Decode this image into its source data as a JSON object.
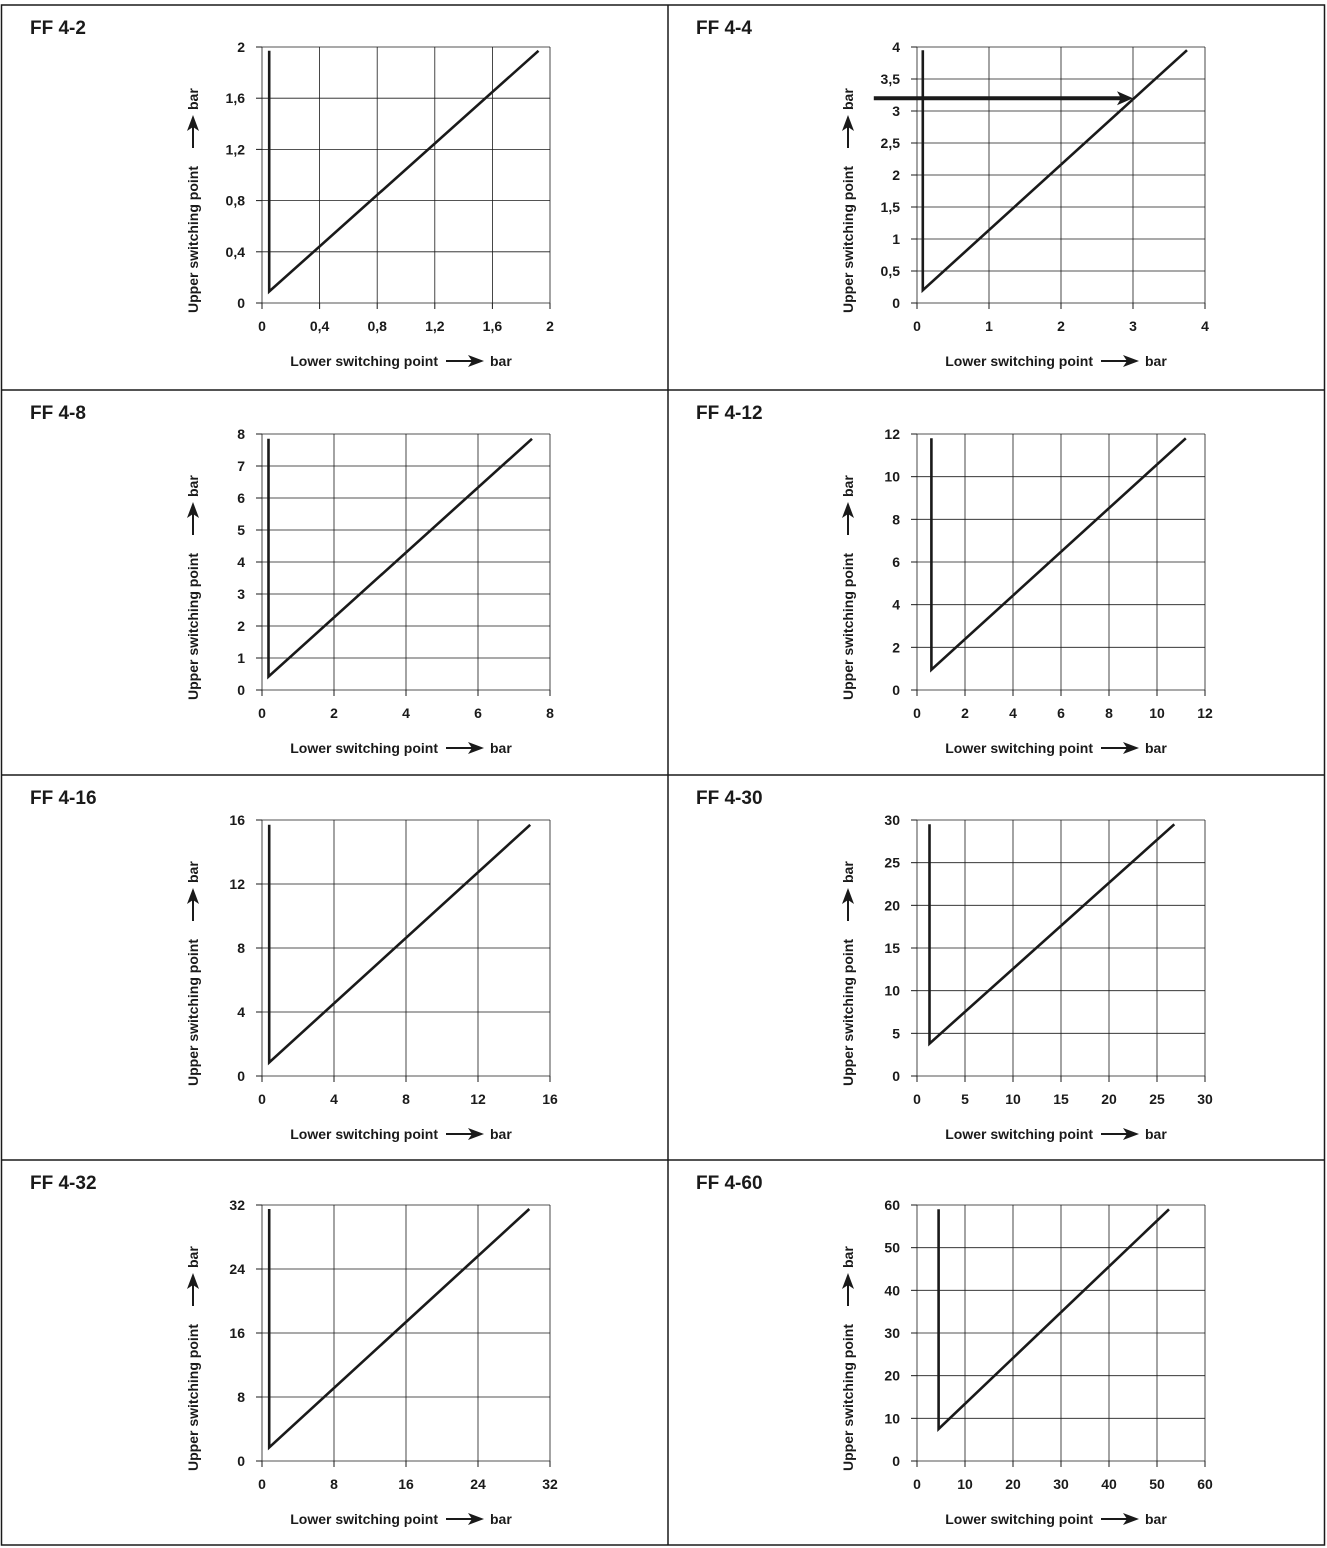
{
  "chart_data": [
    {
      "type": "line",
      "title": "FF 4-2",
      "xlabel": "Lower switching point",
      "xunit": "bar",
      "ylabel": "Upper switching point",
      "yunit": "bar",
      "xlim": [
        0,
        2
      ],
      "ylim": [
        0,
        2
      ],
      "xticks": [
        0,
        0.4,
        0.8,
        1.2,
        1.6,
        2
      ],
      "xtick_labels": [
        "0",
        "0,4",
        "0,8",
        "1,2",
        "1,6",
        "2"
      ],
      "yticks": [
        0,
        0.4,
        0.8,
        1.2,
        1.6,
        2
      ],
      "ytick_labels": [
        "0",
        "0,4",
        "0,8",
        "1,2",
        "1,6",
        "2"
      ],
      "grid": true,
      "series": [
        {
          "x": [
            0.05,
            0.05,
            1.92
          ],
          "y": [
            1.97,
            0.09,
            1.97
          ]
        }
      ]
    },
    {
      "type": "line",
      "title": "FF 4-4",
      "xlabel": "Lower switching point",
      "xunit": "bar",
      "ylabel": "Upper switching point",
      "yunit": "bar",
      "xlim": [
        0,
        4
      ],
      "ylim": [
        0,
        4
      ],
      "xticks": [
        0,
        1,
        2,
        3,
        4
      ],
      "xtick_labels": [
        "0",
        "1",
        "2",
        "3",
        "4"
      ],
      "yticks": [
        0,
        0.5,
        1,
        1.5,
        2,
        2.5,
        3,
        3.5,
        4
      ],
      "ytick_labels": [
        "0",
        "0,5",
        "1",
        "1,5",
        "2",
        "2,5",
        "3",
        "3,5",
        "4"
      ],
      "grid": true,
      "series": [
        {
          "x": [
            0.08,
            0.08,
            3.75
          ],
          "y": [
            3.95,
            0.2,
            3.95
          ]
        }
      ],
      "annotation": {
        "type": "arrow",
        "y": 3.2,
        "from_x": -0.6,
        "to_x": 3.0
      }
    },
    {
      "type": "line",
      "title": "FF 4-8",
      "xlabel": "Lower switching point",
      "xunit": "bar",
      "ylabel": "Upper switching point",
      "yunit": "bar",
      "xlim": [
        0,
        8
      ],
      "ylim": [
        0,
        8
      ],
      "xticks": [
        0,
        2,
        4,
        6,
        8
      ],
      "xtick_labels": [
        "0",
        "2",
        "4",
        "6",
        "8"
      ],
      "yticks": [
        0,
        1,
        2,
        3,
        4,
        5,
        6,
        7,
        8
      ],
      "ytick_labels": [
        "0",
        "1",
        "2",
        "3",
        "4",
        "5",
        "6",
        "7",
        "8"
      ],
      "grid": true,
      "series": [
        {
          "x": [
            0.18,
            0.18,
            7.5
          ],
          "y": [
            7.85,
            0.42,
            7.85
          ]
        }
      ]
    },
    {
      "type": "line",
      "title": "FF 4-12",
      "xlabel": "Lower switching point",
      "xunit": "bar",
      "ylabel": "Upper switching point",
      "yunit": "bar",
      "xlim": [
        0,
        12
      ],
      "ylim": [
        0,
        12
      ],
      "xticks": [
        0,
        2,
        4,
        6,
        8,
        10,
        12
      ],
      "xtick_labels": [
        "0",
        "2",
        "4",
        "6",
        "8",
        "10",
        "12"
      ],
      "yticks": [
        0,
        2,
        4,
        6,
        8,
        10,
        12
      ],
      "ytick_labels": [
        "0",
        "2",
        "4",
        "6",
        "8",
        "10",
        "12"
      ],
      "grid": true,
      "series": [
        {
          "x": [
            0.6,
            0.6,
            11.2
          ],
          "y": [
            11.8,
            0.95,
            11.8
          ]
        }
      ]
    },
    {
      "type": "line",
      "title": "FF 4-16",
      "xlabel": "Lower switching point",
      "xunit": "bar",
      "ylabel": "Upper switching point",
      "yunit": "bar",
      "xlim": [
        0,
        16
      ],
      "ylim": [
        0,
        16
      ],
      "xticks": [
        0,
        4,
        8,
        12,
        16
      ],
      "xtick_labels": [
        "0",
        "4",
        "8",
        "12",
        "16"
      ],
      "yticks": [
        0,
        4,
        8,
        12,
        16
      ],
      "ytick_labels": [
        "0",
        "4",
        "8",
        "12",
        "16"
      ],
      "grid": true,
      "series": [
        {
          "x": [
            0.4,
            0.4,
            14.9
          ],
          "y": [
            15.7,
            0.85,
            15.7
          ]
        }
      ]
    },
    {
      "type": "line",
      "title": "FF 4-30",
      "xlabel": "Lower switching point",
      "xunit": "bar",
      "ylabel": "Upper switching point",
      "yunit": "bar",
      "xlim": [
        0,
        30
      ],
      "ylim": [
        0,
        30
      ],
      "xticks": [
        0,
        5,
        10,
        15,
        20,
        25,
        30
      ],
      "xtick_labels": [
        "0",
        "5",
        "10",
        "15",
        "20",
        "25",
        "30"
      ],
      "yticks": [
        0,
        5,
        10,
        15,
        20,
        25,
        30
      ],
      "ytick_labels": [
        "0",
        "5",
        "10",
        "15",
        "20",
        "25",
        "30"
      ],
      "grid": true,
      "series": [
        {
          "x": [
            1.3,
            1.3,
            26.8
          ],
          "y": [
            29.5,
            3.8,
            29.5
          ]
        }
      ]
    },
    {
      "type": "line",
      "title": "FF 4-32",
      "xlabel": "Lower switching point",
      "xunit": "bar",
      "ylabel": "Upper switching point",
      "yunit": "bar",
      "xlim": [
        0,
        32
      ],
      "ylim": [
        0,
        32
      ],
      "xticks": [
        0,
        8,
        16,
        24,
        32
      ],
      "xtick_labels": [
        "0",
        "8",
        "16",
        "24",
        "32"
      ],
      "yticks": [
        0,
        8,
        16,
        24,
        32
      ],
      "ytick_labels": [
        "0",
        "8",
        "16",
        "24",
        "32"
      ],
      "grid": true,
      "series": [
        {
          "x": [
            0.8,
            0.8,
            29.7
          ],
          "y": [
            31.5,
            1.7,
            31.5
          ]
        }
      ]
    },
    {
      "type": "line",
      "title": "FF 4-60",
      "xlabel": "Lower switching point",
      "xunit": "bar",
      "ylabel": "Upper switching point",
      "yunit": "bar",
      "xlim": [
        0,
        60
      ],
      "ylim": [
        0,
        60
      ],
      "xticks": [
        0,
        10,
        20,
        30,
        40,
        50,
        60
      ],
      "xtick_labels": [
        "0",
        "10",
        "20",
        "30",
        "40",
        "50",
        "60"
      ],
      "yticks": [
        0,
        10,
        20,
        30,
        40,
        50,
        60
      ],
      "ytick_labels": [
        "0",
        "10",
        "20",
        "30",
        "40",
        "50",
        "60"
      ],
      "grid": true,
      "series": [
        {
          "x": [
            4.5,
            4.5,
            52.5
          ],
          "y": [
            59,
            7.5,
            59
          ]
        }
      ]
    }
  ]
}
